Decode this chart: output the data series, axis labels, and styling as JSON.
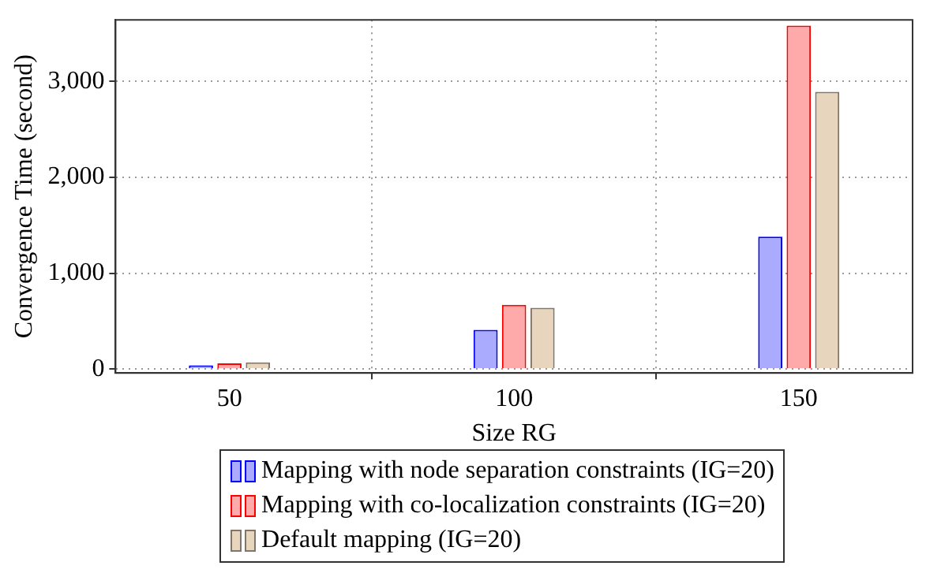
{
  "chart_data": {
    "type": "bar",
    "xlabel": "Size RG",
    "ylabel": "Convergence Time (second)",
    "x": [
      50,
      100,
      150
    ],
    "xlim": [
      30,
      170
    ],
    "xticks": [
      50,
      100,
      150
    ],
    "ylim": [
      -40,
      3640
    ],
    "yticks": [
      0,
      {
        "value": 1000,
        "label": "1,000"
      },
      {
        "value": 2000,
        "label": "2,000"
      },
      {
        "value": 3000,
        "label": "3,000"
      }
    ],
    "series": [
      {
        "name": "Mapping with node separation constraints (IG=20)",
        "color": "#aaaaff",
        "values": [
          40,
          410,
          1380
        ]
      },
      {
        "name": "Mapping with co-localization constraints (IG=20)",
        "color": "#ffaaaa",
        "values": [
          60,
          670,
          3580
        ]
      },
      {
        "name": "Default mapping (IG=20)",
        "color": "#e8d5bd",
        "values": [
          70,
          640,
          2890
        ]
      }
    ],
    "grid": true,
    "legend": "bottom"
  }
}
